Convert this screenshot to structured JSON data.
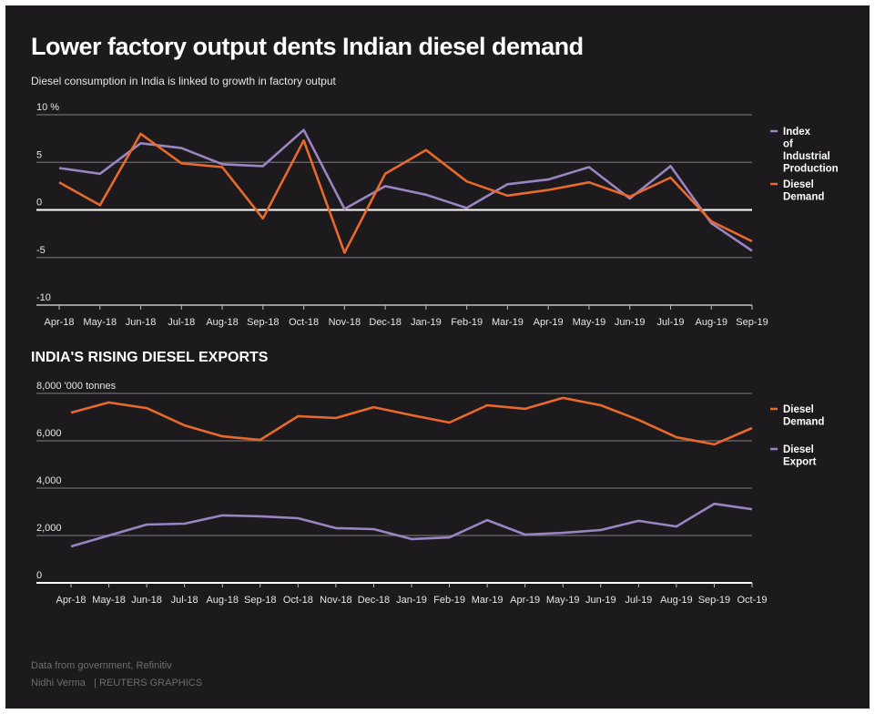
{
  "title": "Lower factory output dents Indian diesel demand",
  "subtitle": "Diesel consumption in India is linked to growth in factory output",
  "footer": {
    "source": "Data from government, Refinitiv",
    "author": "Nidhi Verma",
    "credit": "| REUTERS GRAPHICS"
  },
  "colors": {
    "orange": "#e8692c",
    "purple": "#9b84c2",
    "background": "#1c1a1d"
  },
  "chart_data": [
    {
      "type": "line",
      "ylabel": "%",
      "ylim": [
        -10,
        10
      ],
      "yticks": [
        10,
        5,
        0,
        -5,
        -10
      ],
      "grid": true,
      "legend": "right",
      "categories": [
        "Apr-18",
        "May-18",
        "Jun-18",
        "Jul-18",
        "Aug-18",
        "Sep-18",
        "Oct-18",
        "Nov-18",
        "Dec-18",
        "Jan-19",
        "Feb-19",
        "Mar-19",
        "Apr-19",
        "May-19",
        "Jun-19",
        "Jul-19",
        "Aug-19",
        "Sep-19"
      ],
      "series": [
        {
          "name": "Index of Industrial Production",
          "color": "#9b84c2",
          "values": [
            4.4,
            3.8,
            7.0,
            6.5,
            4.8,
            4.6,
            8.4,
            0.1,
            2.5,
            1.6,
            0.2,
            2.7,
            3.2,
            4.5,
            1.2,
            4.6,
            -1.4,
            -4.3
          ]
        },
        {
          "name": "Diesel Demand",
          "color": "#e8692c",
          "values": [
            2.9,
            0.5,
            8.0,
            4.9,
            4.5,
            -0.9,
            7.3,
            -4.5,
            3.8,
            6.3,
            3.0,
            1.5,
            2.1,
            2.9,
            1.4,
            3.4,
            -1.2,
            -3.3
          ]
        }
      ]
    },
    {
      "type": "line",
      "title": "INDIA'S RISING DIESEL EXPORTS",
      "ylabel": "'000 tonnes",
      "ylim": [
        0,
        8000
      ],
      "yticks": [
        8000,
        6000,
        4000,
        2000,
        0
      ],
      "yticklabels": [
        "8,000",
        "6,000",
        "4,000",
        "2,000",
        "0"
      ],
      "grid": true,
      "legend": "right",
      "categories": [
        "Apr-18",
        "May-18",
        "Jun-18",
        "Jul-18",
        "Aug-18",
        "Sep-18",
        "Oct-18",
        "Nov-18",
        "Dec-18",
        "Jan-19",
        "Feb-19",
        "Mar-19",
        "Apr-19",
        "May-19",
        "Jun-19",
        "Jul-19",
        "Aug-19",
        "Sep-19",
        "Oct-19"
      ],
      "series": [
        {
          "name": "Diesel Demand",
          "color": "#e8692c",
          "values": [
            7190,
            7620,
            7380,
            6650,
            6190,
            6040,
            7040,
            6960,
            7420,
            7080,
            6770,
            7500,
            7350,
            7810,
            7500,
            6880,
            6150,
            5850,
            6540
          ]
        },
        {
          "name": "Diesel Export",
          "color": "#9b84c2",
          "values": [
            1540,
            2000,
            2460,
            2500,
            2850,
            2810,
            2730,
            2310,
            2270,
            1850,
            1920,
            2650,
            2040,
            2110,
            2230,
            2620,
            2380,
            3340,
            3110
          ]
        }
      ]
    }
  ]
}
